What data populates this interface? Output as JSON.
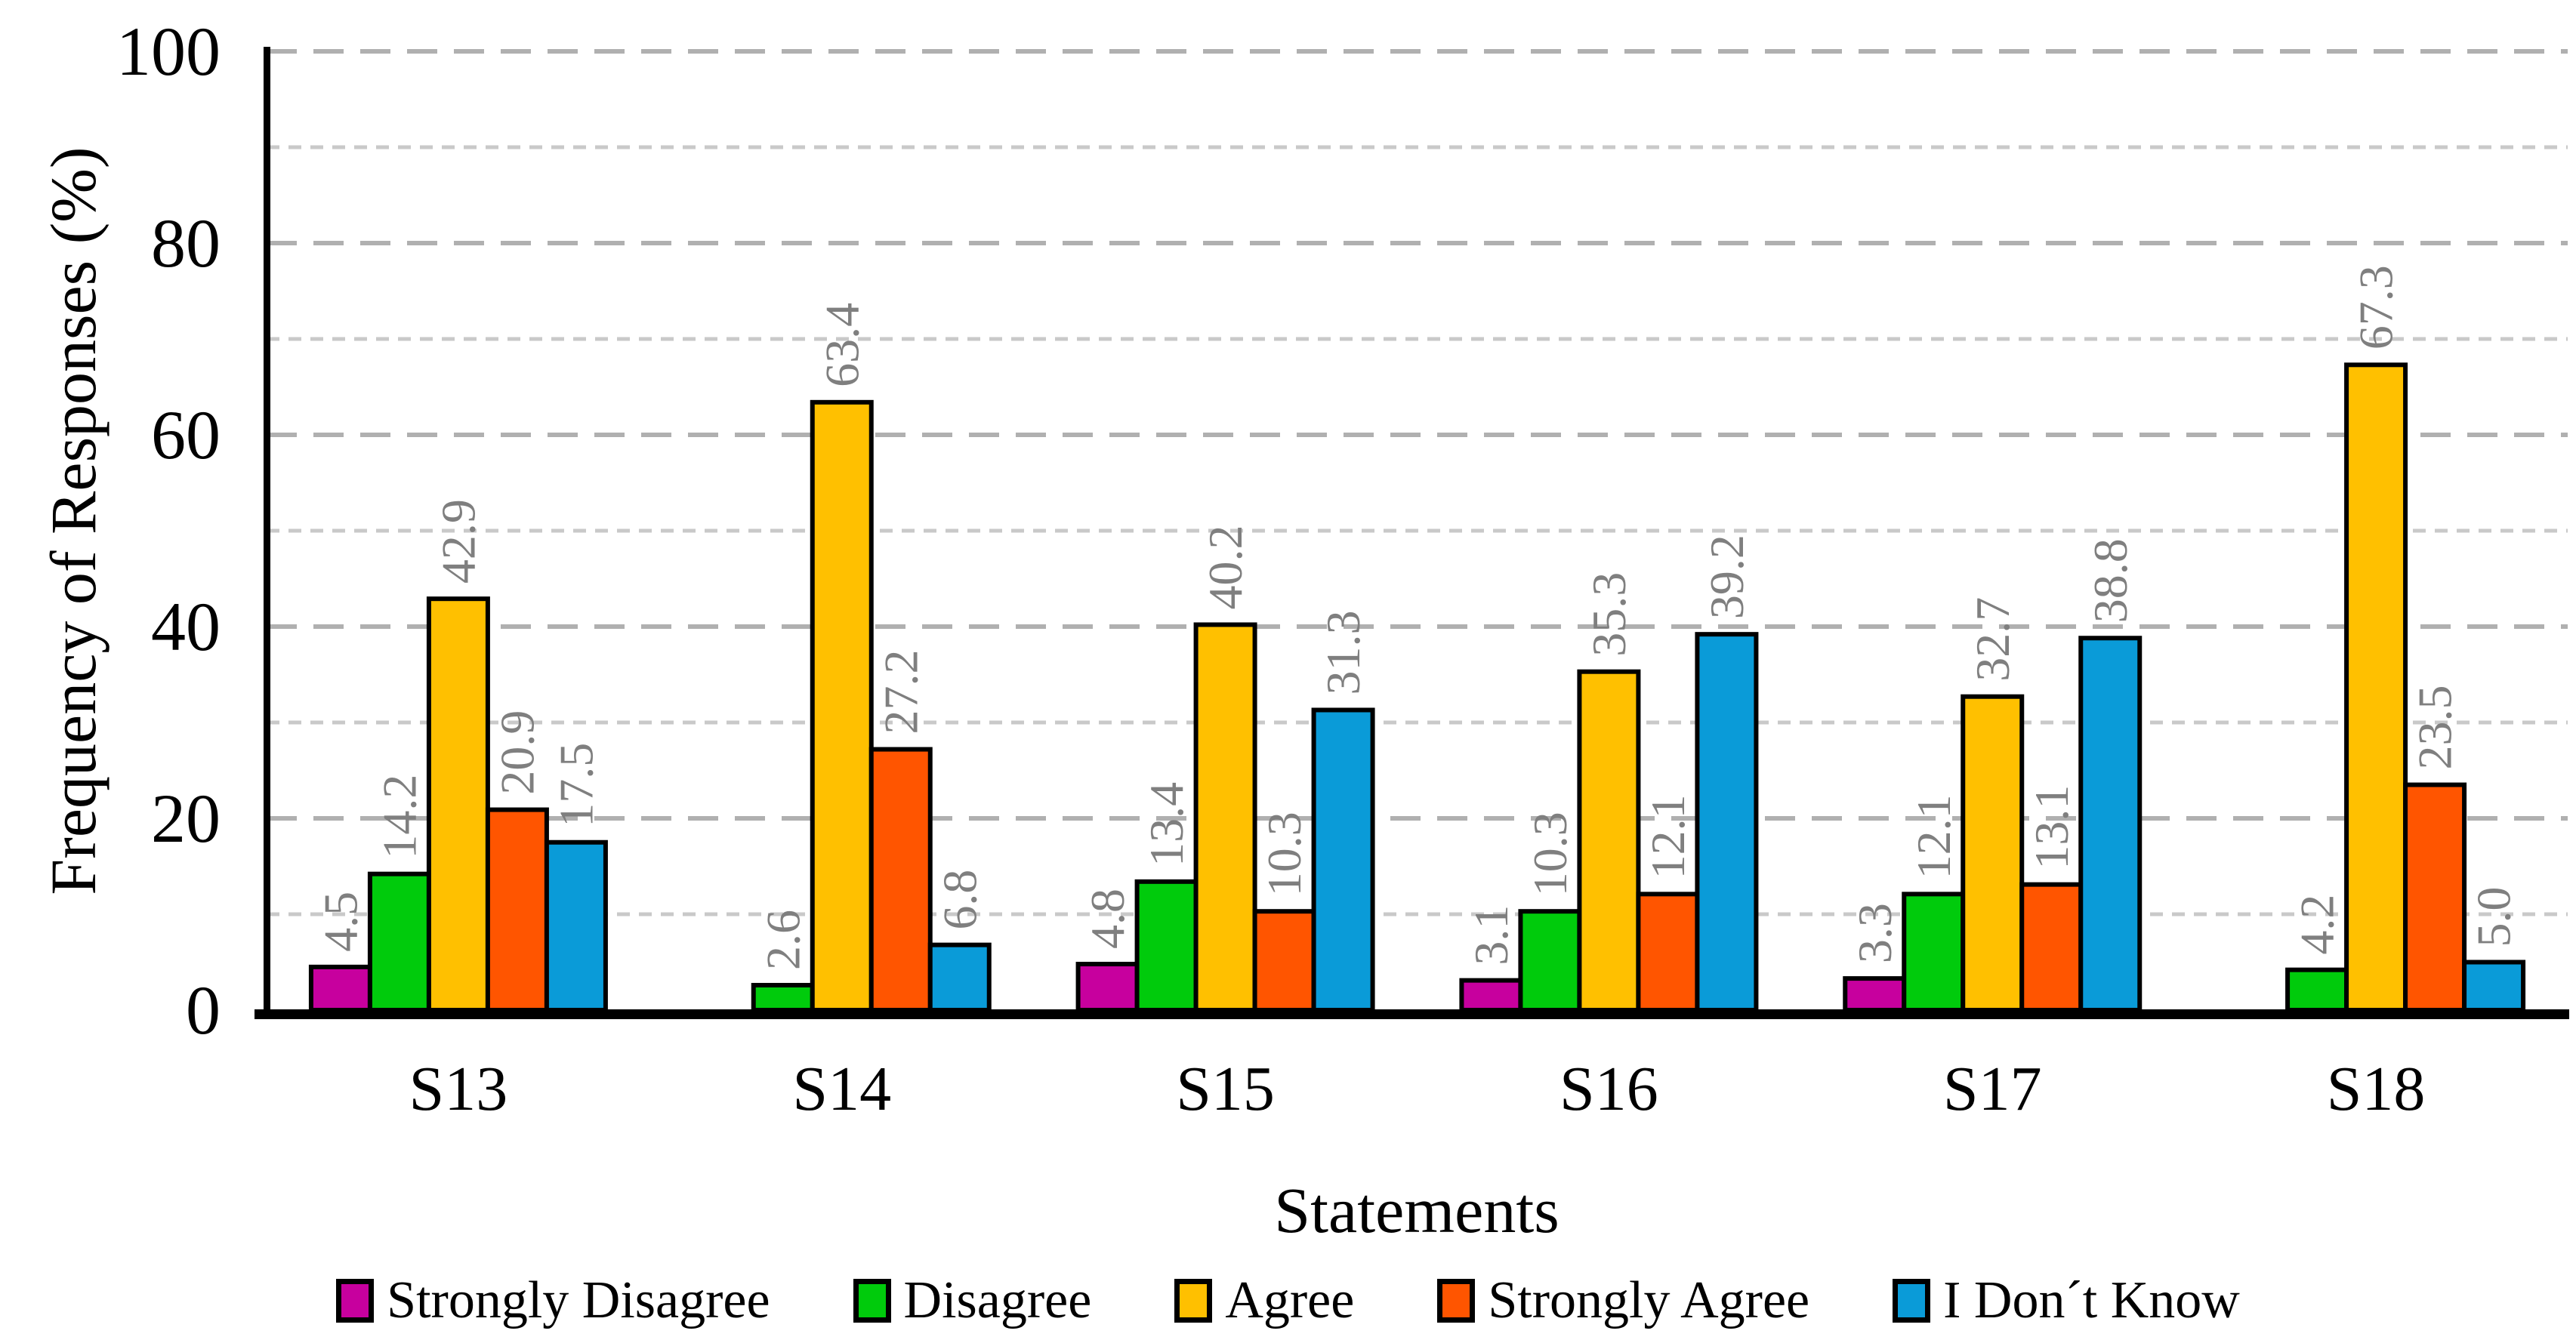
{
  "figure": {
    "y_axis_title": "Frequency of Responses (%)",
    "x_axis_title": "Statements"
  },
  "chart_data": {
    "type": "bar",
    "grouping": "grouped",
    "title": "",
    "xlabel": "Statements",
    "ylabel": "Frequency of Responses (%)",
    "categories": [
      "S13",
      "S14",
      "S15",
      "S16",
      "S17",
      "S18"
    ],
    "series": [
      {
        "name": "Strongly Disagree",
        "color": "#C7009E",
        "values": [
          4.5,
          0,
          4.8,
          3.1,
          3.3,
          0
        ]
      },
      {
        "name": "Disagree",
        "color": "#00CB0C",
        "values": [
          14.2,
          2.6,
          13.4,
          10.3,
          12.1,
          4.2
        ]
      },
      {
        "name": "Agree",
        "color": "#FFC000",
        "values": [
          42.9,
          63.4,
          40.2,
          35.3,
          32.7,
          67.3
        ]
      },
      {
        "name": "Strongly Agree",
        "color": "#FF5500",
        "values": [
          20.9,
          27.2,
          10.3,
          12.1,
          13.1,
          23.5
        ]
      },
      {
        "name": "I Don´t Know",
        "color": "#0A9BD8",
        "values": [
          17.5,
          6.8,
          31.3,
          39.2,
          38.8,
          5.0
        ]
      }
    ],
    "ylim": [
      0,
      100
    ],
    "yticks": [
      0,
      20,
      40,
      60,
      80,
      100
    ],
    "grid": {
      "major_step": 20,
      "minor_step": 10,
      "style": "dashed",
      "major_color": "#B0B0B0",
      "minor_color": "#C9C9C9"
    },
    "bar_outline_color": "#000000",
    "axis_color": "#000000",
    "value_label_color": "#7F7F7F",
    "value_label_format": "one_decimal",
    "value_label_rotation_deg": -90,
    "zero_bars_omitted": true,
    "legend_position": "bottom"
  }
}
